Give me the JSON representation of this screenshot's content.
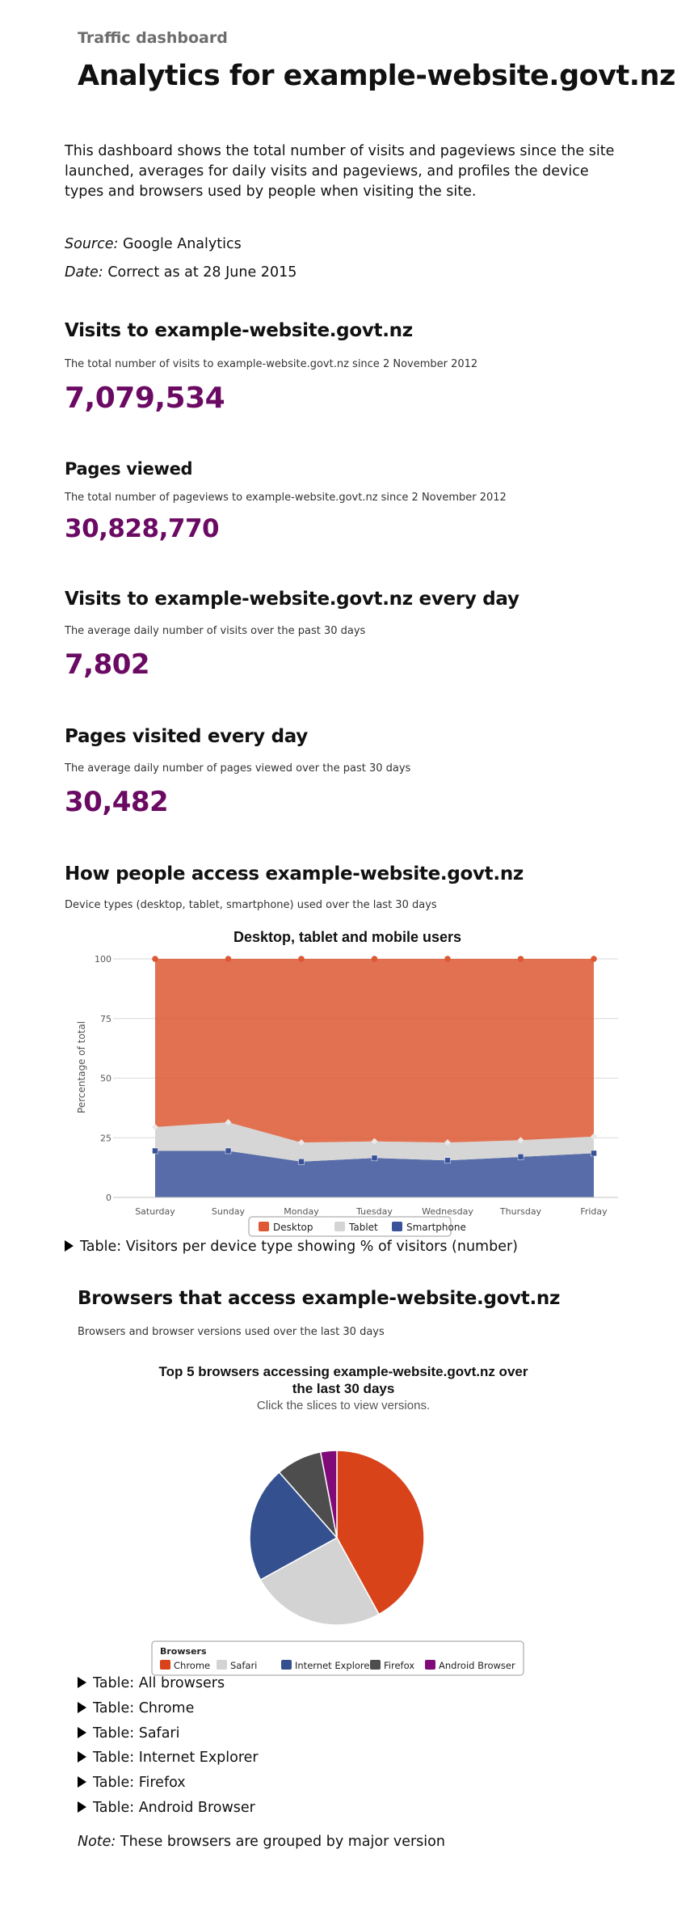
{
  "header": {
    "kicker": "Traffic dashboard",
    "title": "Analytics for example-website.govt.nz"
  },
  "intro": "This dashboard shows the total number of visits and pageviews since the site launched, averages for daily visits and pageviews, and profiles the device types and browsers used by people when visiting the site.",
  "meta": {
    "source_label": "Source:",
    "source_value": "Google Analytics",
    "date_label": "Date:",
    "date_value": "Correct as at 28 June 2015"
  },
  "stats": [
    {
      "heading": "Visits to example-website.govt.nz",
      "description": "The total number of visits to example-website.govt.nz since 2 November 2012",
      "value": "7,079,534"
    },
    {
      "heading": "Pages viewed",
      "description": "The total number of pageviews to example-website.govt.nz since 2 November 2012",
      "value": "30,828,770"
    },
    {
      "heading": "Visits to example-website.govt.nz every day",
      "description": "The average daily number of visits over the past 30 days",
      "value": "7,802"
    },
    {
      "heading": "Pages visited every day",
      "description": "The average daily number of pages viewed over the past 30 days",
      "value": "30,482"
    }
  ],
  "devices": {
    "heading": "How people access example-website.govt.nz",
    "description": "Device types (desktop, tablet, smartphone) used over the last 30 days",
    "table_toggle": "Table: Visitors per device type showing % of visitors (number)"
  },
  "browsers": {
    "heading": "Browsers that access example-website.govt.nz",
    "description": "Browsers and browser versions used over the last 30 days",
    "table_toggles": [
      "Table: All browsers",
      "Table: Chrome",
      "Table: Safari",
      "Table: Internet Explorer",
      "Table: Firefox",
      "Table: Android Browser"
    ],
    "note_label": "Note:",
    "note_text": "These browsers are grouped by major version"
  },
  "chart_data": [
    {
      "type": "area",
      "stacked": true,
      "title": "Desktop, tablet and mobile users",
      "ylabel": "Percentage of total",
      "xlabel": "",
      "ylim": [
        0,
        100
      ],
      "yticks": [
        0,
        25,
        50,
        75,
        100
      ],
      "categories": [
        "Saturday",
        "Sunday",
        "Monday",
        "Tuesday",
        "Wednesday",
        "Thursday",
        "Friday"
      ],
      "series": [
        {
          "name": "Smartphone",
          "color": "#3a5299",
          "values": [
            19.5,
            19.5,
            15,
            16.5,
            15.5,
            17,
            18.5
          ]
        },
        {
          "name": "Tablet",
          "color": "#d4d4d4",
          "values": [
            10,
            12,
            8,
            7,
            7.5,
            7,
            7
          ]
        },
        {
          "name": "Desktop",
          "color": "#dd5833",
          "values": [
            70.5,
            68.5,
            77,
            76.5,
            77,
            76,
            74.5
          ]
        }
      ],
      "legend": {
        "position": "bottom-center",
        "items": [
          "Desktop",
          "Tablet",
          "Smartphone"
        ]
      },
      "grid": true
    },
    {
      "type": "pie",
      "title": "Top 5 browsers accessing example-website.govt.nz over the last 30 days",
      "subtitle": "Click the slices to view versions.",
      "legend": {
        "title": "Browsers",
        "position": "bottom-center"
      },
      "slices": [
        {
          "label": "Chrome",
          "value": 42,
          "color": "#d9431a"
        },
        {
          "label": "Safari",
          "value": 25,
          "color": "#d3d3d3"
        },
        {
          "label": "Internet Explorer",
          "value": 21.5,
          "color": "#34508f"
        },
        {
          "label": "Firefox",
          "value": 8.5,
          "color": "#4d4d4d"
        },
        {
          "label": "Android Browser",
          "value": 3,
          "color": "#800a78"
        }
      ]
    }
  ]
}
